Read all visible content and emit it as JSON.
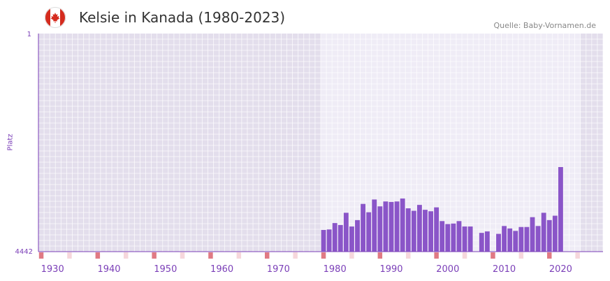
{
  "header": {
    "title": "Kelsie in Kanada (1980-2023)",
    "source": "Quelle: Baby-Vornamen.de",
    "flag_icon": "canada-flag-icon"
  },
  "colors": {
    "bar": "#8a55c8",
    "axis": "#7b3fb8",
    "plot_bg_dark": "#e3deec",
    "plot_bg_light": "#efecf6",
    "decade_marker": "#e07a84",
    "half_decade_marker": "#f6d7dc"
  },
  "chart_data": {
    "type": "bar",
    "title": "Kelsie in Kanada (1980-2023)",
    "xlabel": "",
    "ylabel": "Platz",
    "y_axis_inverted": true,
    "ylim": [
      1,
      4442
    ],
    "y_ticks": [
      "1",
      "4442"
    ],
    "xlim": [
      1928,
      2028
    ],
    "x_ticks": [
      1930,
      1940,
      1950,
      1960,
      1970,
      1980,
      1990,
      2000,
      2010,
      2020
    ],
    "highlight_range": [
      1978,
      2023
    ],
    "grid": true,
    "years": [
      1978,
      1979,
      1980,
      1981,
      1982,
      1983,
      1984,
      1985,
      1986,
      1987,
      1988,
      1989,
      1990,
      1991,
      1992,
      1993,
      1994,
      1995,
      1996,
      1997,
      1998,
      1999,
      2000,
      2001,
      2002,
      2003,
      2004,
      2005,
      2006,
      2007,
      2008,
      2009,
      2010,
      2011,
      2012,
      2013,
      2014,
      2015,
      2016,
      2017,
      2018,
      2019,
      2020,
      2021,
      2022
    ],
    "values": [
      4000,
      3990,
      3860,
      3900,
      3650,
      3930,
      3800,
      3470,
      3640,
      3380,
      3520,
      3420,
      3430,
      3420,
      3360,
      3560,
      3610,
      3490,
      3590,
      3620,
      3540,
      3820,
      3880,
      3870,
      3820,
      3930,
      3930,
      null,
      4060,
      4030,
      null,
      4080,
      3920,
      3970,
      4020,
      3940,
      3940,
      3740,
      3920,
      3650,
      3800,
      3710,
      2720,
      null,
      null
    ]
  }
}
